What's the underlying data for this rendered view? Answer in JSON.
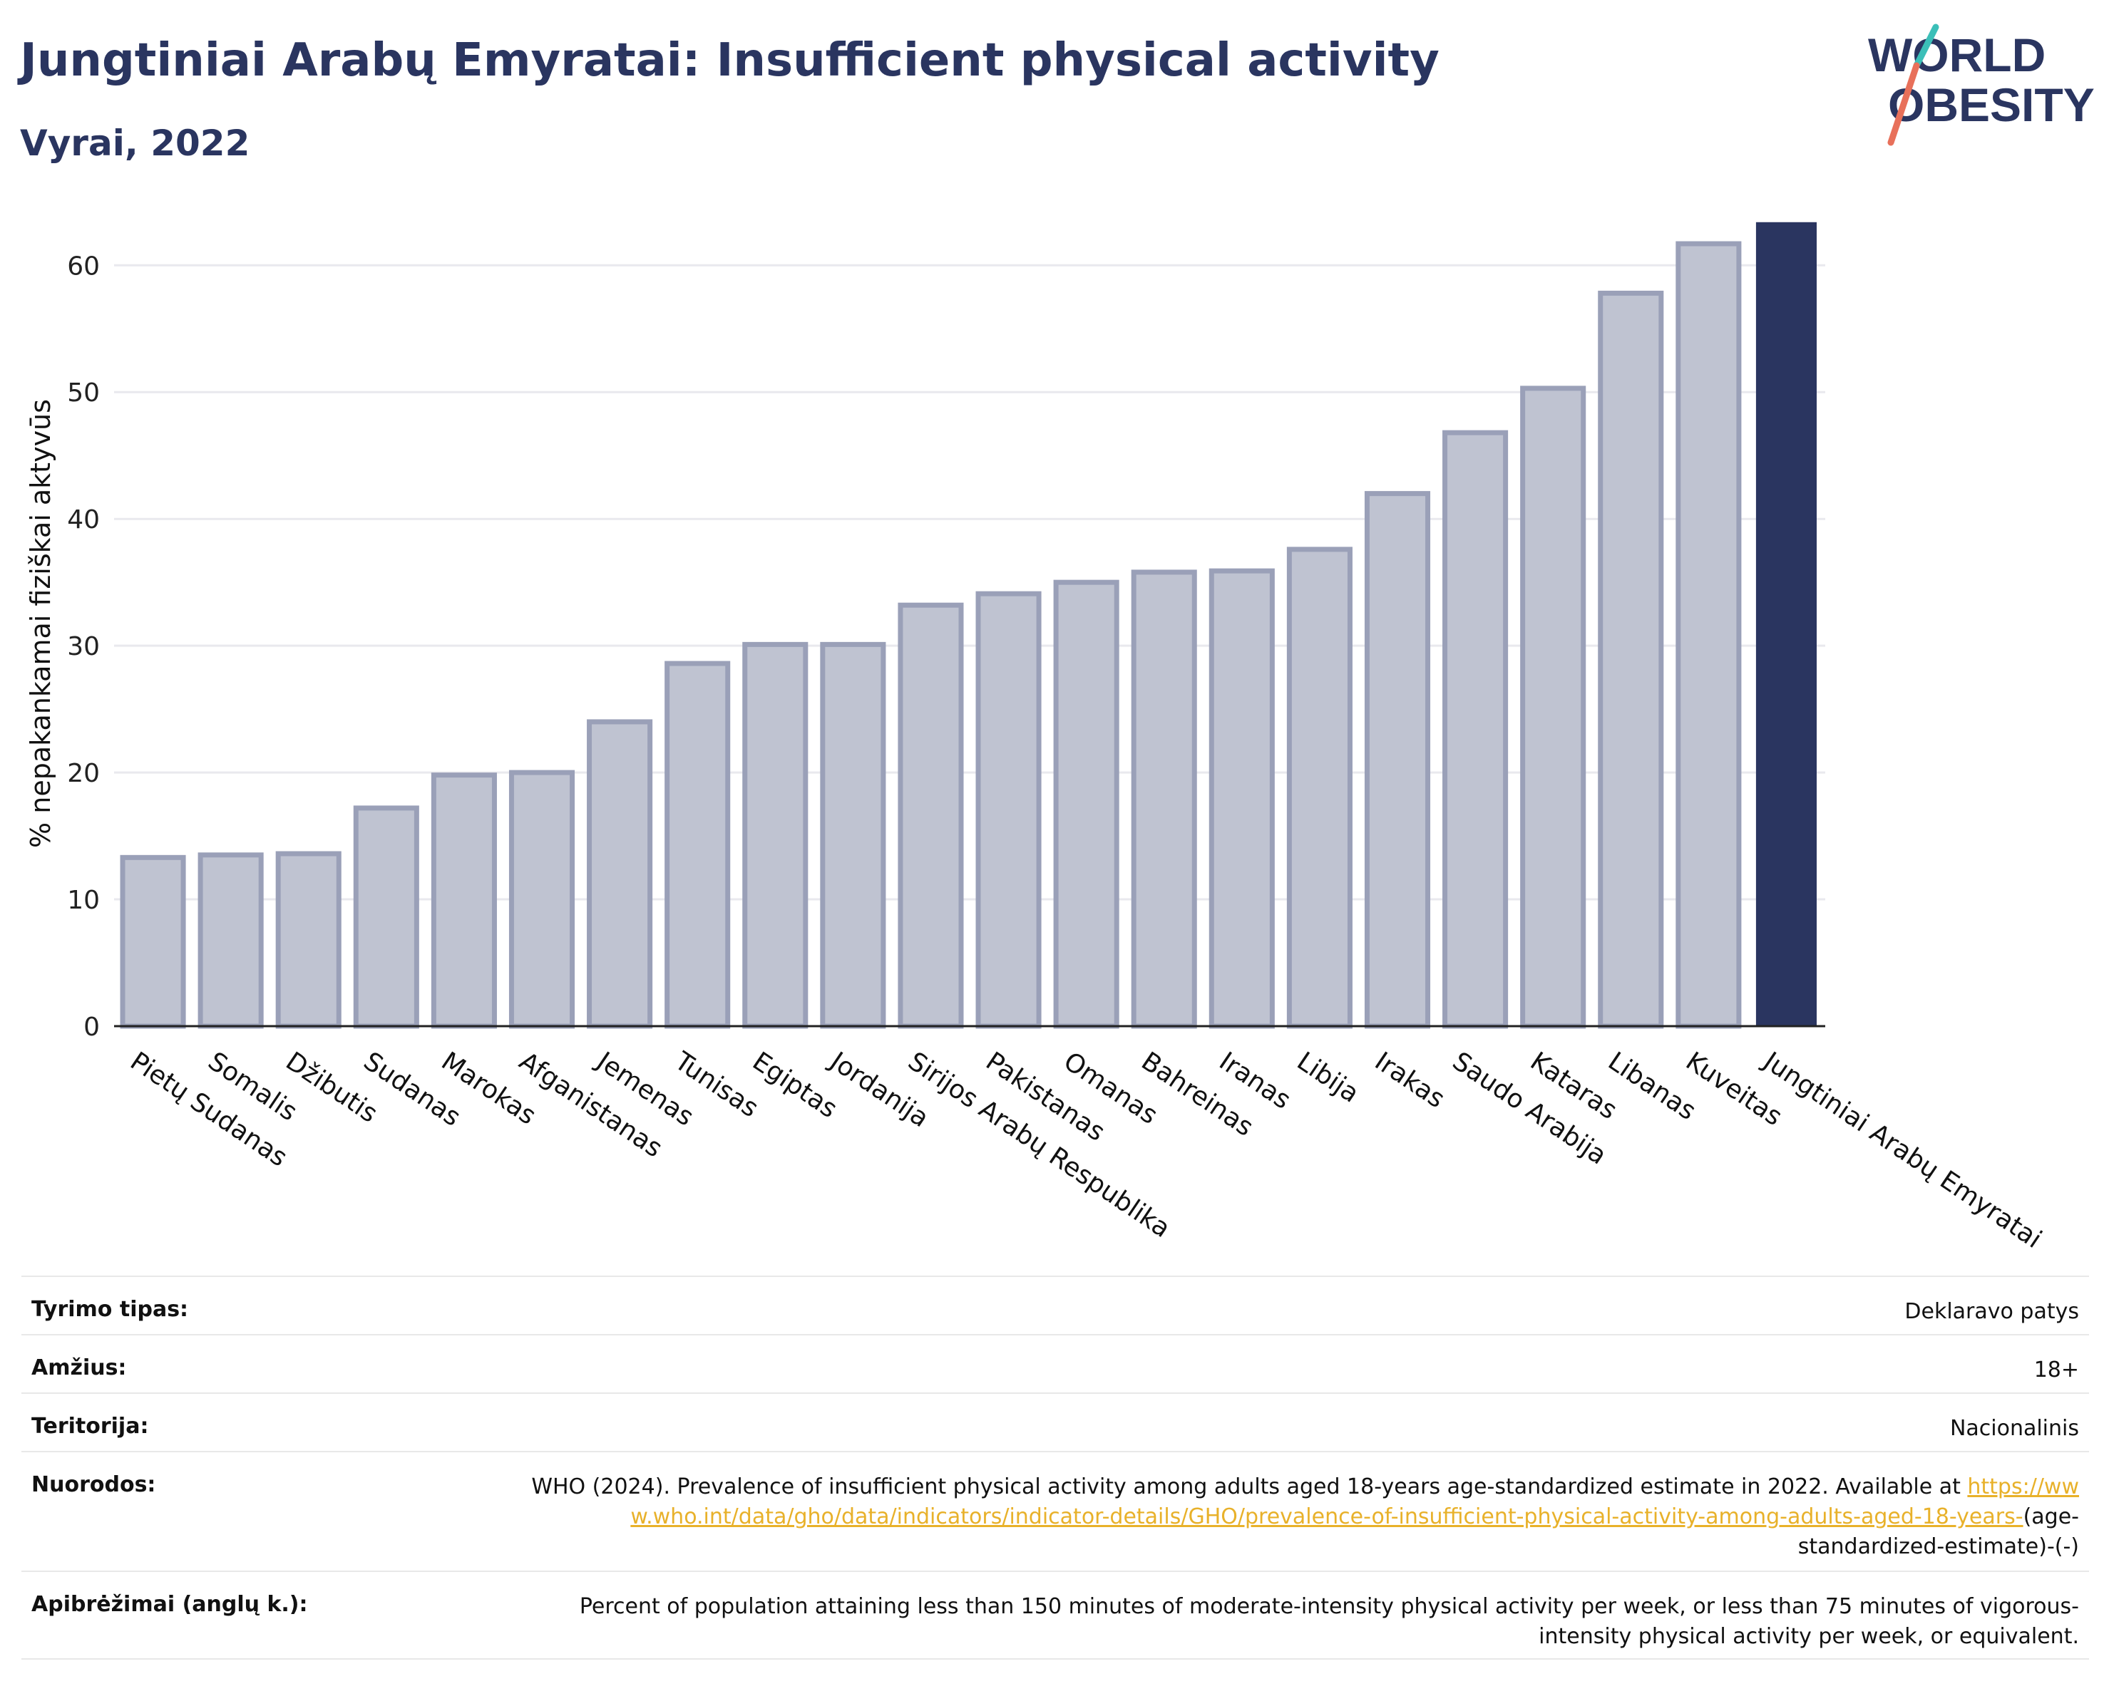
{
  "header": {
    "title": "Jungtiniai Arabų Emyratai: Insufficient physical activity",
    "subtitle": "Vyrai, 2022"
  },
  "logo": {
    "line1": "WORLD",
    "line2": "OBESITY",
    "colors": {
      "text": "#2a3560",
      "slash_teal": "#3bbfb8",
      "slash_coral": "#e8705a"
    }
  },
  "colors": {
    "bar_fill": "#bfc3d1",
    "bar_stroke": "#9aa0b8",
    "highlight": "#2a3560",
    "grid": "#e9e9ee",
    "axis": "#222222"
  },
  "chart_data": {
    "type": "bar",
    "title": "",
    "xlabel": "",
    "ylabel": "% nepakankamai fiziškai aktyvūs",
    "ylim": [
      0,
      63.5
    ],
    "yticks": [
      0,
      10,
      20,
      30,
      40,
      50,
      60
    ],
    "grid": true,
    "highlight_category": "Jungtiniai Arabų Emyratai",
    "categories": [
      "Pietų Sudanas",
      "Somalis",
      "Džibutis",
      "Sudanas",
      "Marokas",
      "Afganistanas",
      "Jemenas",
      "Tunisas",
      "Egiptas",
      "Jordanija",
      "Sirijos Arabų Respublika",
      "Pakistanas",
      "Omanas",
      "Bahreinas",
      "Iranas",
      "Libija",
      "Irakas",
      "Saudo Arabija",
      "Kataras",
      "Libanas",
      "Kuveitas",
      "Jungtiniai Arabų Emyratai"
    ],
    "values": [
      13.3,
      13.5,
      13.6,
      17.2,
      19.8,
      20.0,
      24.0,
      28.6,
      30.1,
      30.1,
      33.2,
      34.1,
      35.0,
      35.8,
      35.9,
      37.6,
      42.0,
      46.8,
      50.3,
      57.8,
      61.7,
      63.4
    ]
  },
  "meta": {
    "rows": [
      {
        "label": "Tyrimo tipas:",
        "value": "Deklaravo patys"
      },
      {
        "label": "Amžius:",
        "value": "18+"
      },
      {
        "label": "Teritorija:",
        "value": "Nacionalinis"
      },
      {
        "label": "Nuorodos:",
        "value": "WHO (2024). Prevalence of insufficient physical activity among adults aged 18-years age-standardized estimate in 2022. Available at",
        "link": "https://www.who.int/data/gho/data/indicators/indicator-details/GHO/prevalence-of-insufficient-physical-activity-among-adults-aged-18-years-",
        "suffix": "(age-standardized-estimate)-(-)"
      },
      {
        "label": "Apibrėžimai (anglų k.):",
        "value": "Percent of population attaining less than 150 minutes of moderate-intensity physical activity per week, or less than 75 minutes of vigorous-intensity physical activity per week, or equivalent."
      }
    ]
  }
}
